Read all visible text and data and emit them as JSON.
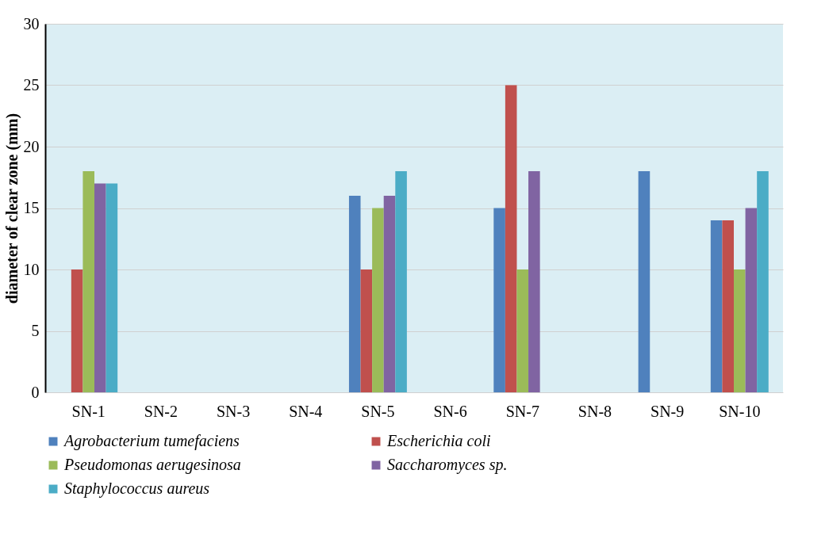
{
  "chart_data": {
    "type": "bar",
    "ylabel": "diameter of clear zone (mm)",
    "categories": [
      "SN-1",
      "SN-2",
      "SN-3",
      "SN-4",
      "SN-5",
      "SN-6",
      "SN-7",
      "SN-8",
      "SN-9",
      "SN-10"
    ],
    "series": [
      {
        "name": "Agrobacterium tumefaciens",
        "color": "#4f81bd",
        "values": [
          0,
          0,
          0,
          0,
          16,
          0,
          15,
          0,
          18,
          14
        ]
      },
      {
        "name": "Escherichia coli",
        "color": "#c0504d",
        "values": [
          10,
          0,
          0,
          0,
          10,
          0,
          25,
          0,
          0,
          14
        ]
      },
      {
        "name": "Pseudomonas aerugesinosa",
        "color": "#9bbb59",
        "values": [
          18,
          0,
          0,
          0,
          15,
          0,
          10,
          0,
          0,
          10
        ]
      },
      {
        "name": "Saccharomyces sp.",
        "color": "#8064a2",
        "values": [
          17,
          0,
          0,
          0,
          16,
          0,
          18,
          0,
          0,
          15
        ]
      },
      {
        "name": "Staphylococcus aureus",
        "color": "#4bacc6",
        "values": [
          17,
          0,
          0,
          0,
          18,
          0,
          0,
          0,
          0,
          18
        ]
      }
    ],
    "ylim": [
      0,
      30
    ],
    "yticks": [
      0,
      5,
      10,
      15,
      20,
      25,
      30
    ],
    "grid": "y",
    "legend": "bottom"
  }
}
